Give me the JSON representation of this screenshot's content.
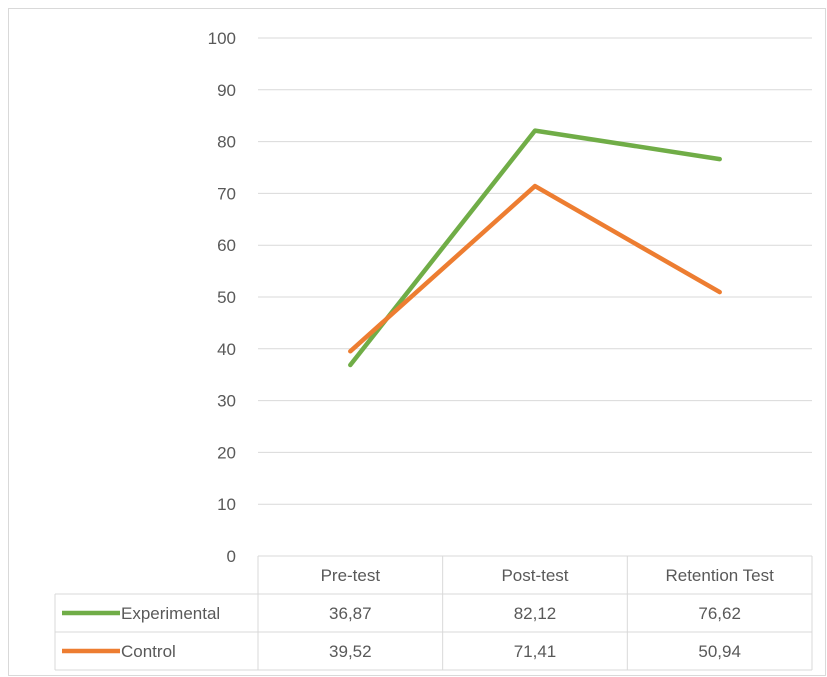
{
  "chart_data": {
    "type": "line",
    "categories": [
      "Pre-test",
      "Post-test",
      "Retention Test"
    ],
    "series": [
      {
        "name": "Experimental",
        "values": [
          36.87,
          82.12,
          76.62
        ],
        "color": "#70ad47",
        "labels": [
          "36,87",
          "82,12",
          "76,62"
        ]
      },
      {
        "name": "Control",
        "values": [
          39.52,
          71.41,
          50.94
        ],
        "color": "#ed7d31",
        "labels": [
          "39,52",
          "71,41",
          "50,94"
        ]
      }
    ],
    "ylim": [
      0,
      100
    ],
    "yticks": [
      "0",
      "10",
      "20",
      "30",
      "40",
      "50",
      "60",
      "70",
      "80",
      "90",
      "100"
    ],
    "grid": true,
    "legend": "data-table"
  }
}
